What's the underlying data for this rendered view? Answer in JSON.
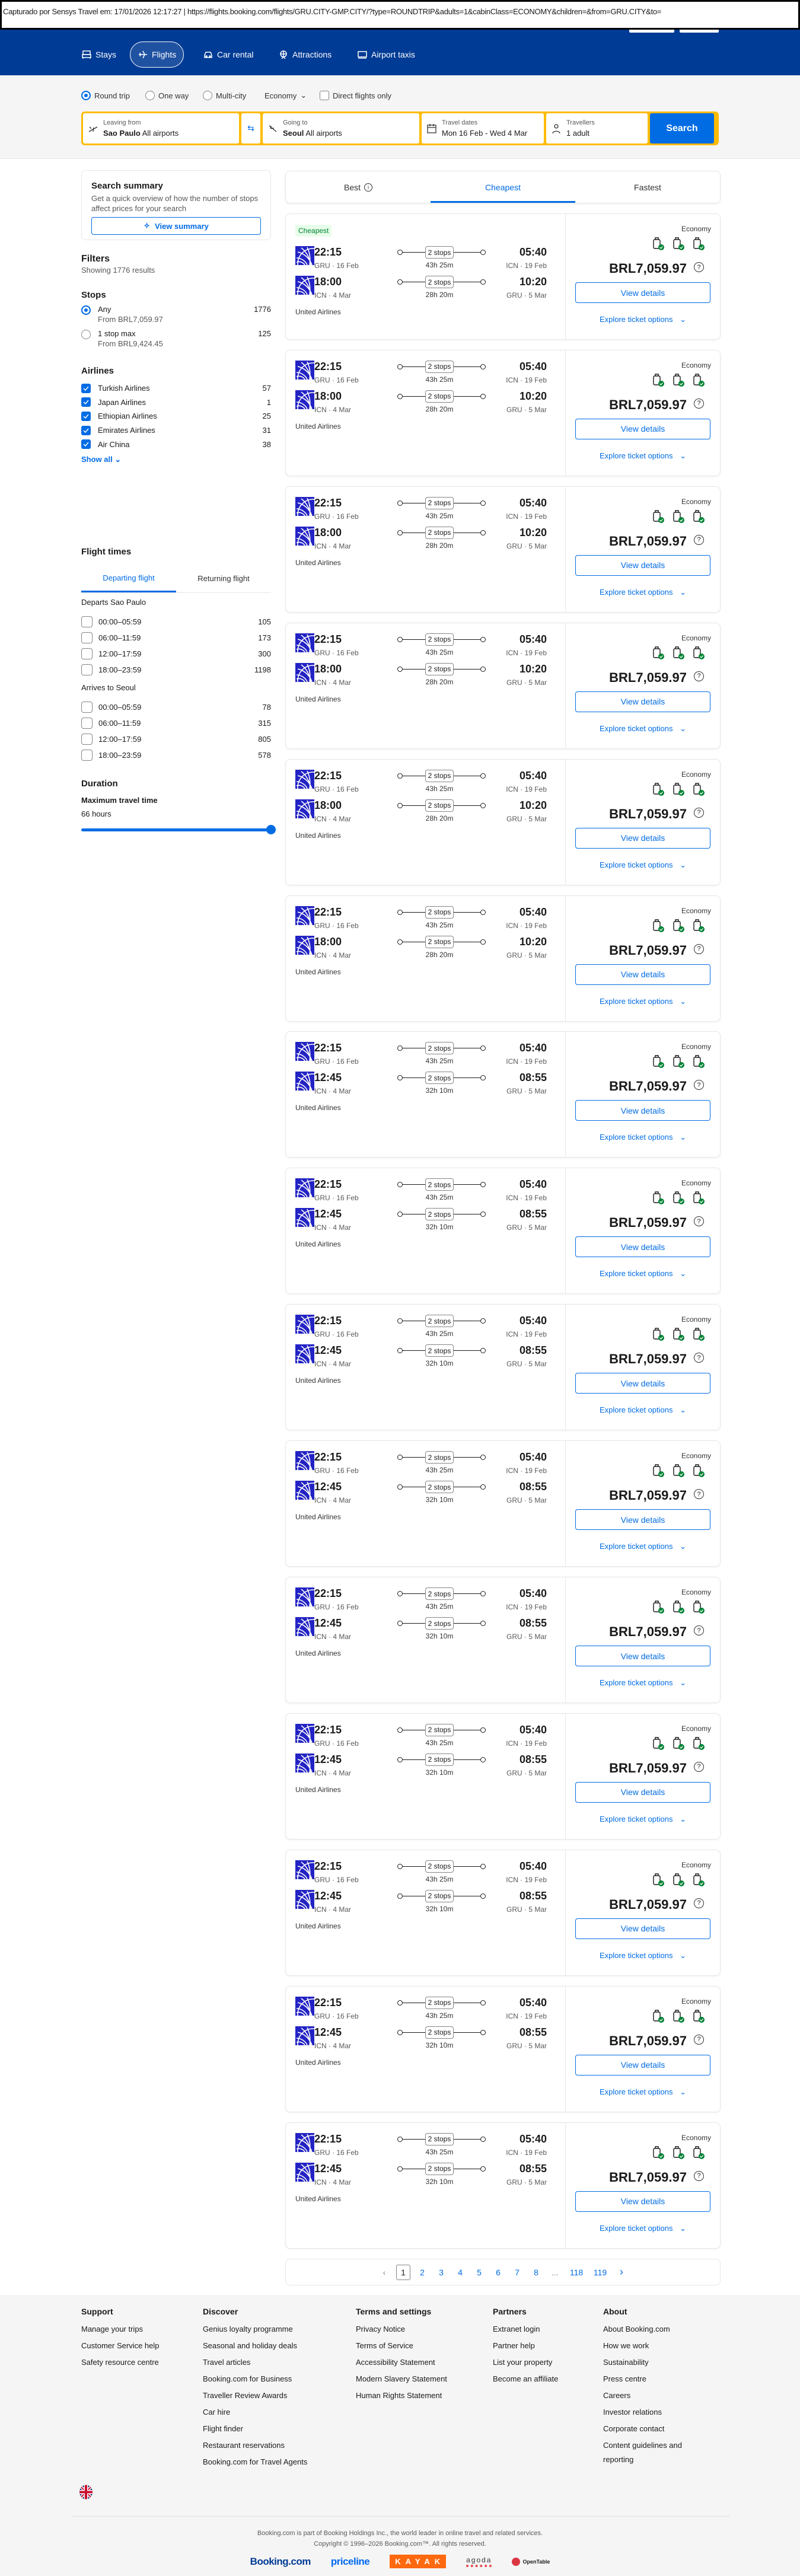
{
  "capture_bar": "Capturado por Sensys Travel em: 17/01/2026 12:17:27  |  https://flights.booking.com/flights/GRU.CITY-GMP.CITY/?type=ROUNDTRIP&adults=1&cabinClass=ECONOMY&children=&from=GRU.CITY&to=",
  "nav": {
    "items": [
      {
        "label": "Stays",
        "icon": "bed-icon"
      },
      {
        "label": "Flights",
        "icon": "plane-icon",
        "active": true
      },
      {
        "label": "Car rental",
        "icon": "car-icon"
      },
      {
        "label": "Attractions",
        "icon": "ferris-wheel-icon"
      },
      {
        "label": "Airport taxis",
        "icon": "taxi-icon"
      }
    ]
  },
  "search": {
    "trip_types": [
      "Round trip",
      "One way",
      "Multi-city"
    ],
    "trip_selected": "Round trip",
    "cabin": "Economy",
    "direct_only": "Direct flights only",
    "leaving": {
      "label": "Leaving from",
      "city": "Sao Paulo",
      "airports": "All airports"
    },
    "going": {
      "label": "Going to",
      "city": "Seoul",
      "airports": "All airports"
    },
    "dates": {
      "label": "Travel dates",
      "value": "Mon 16 Feb - Wed 4 Mar"
    },
    "travellers": {
      "label": "Travellers",
      "value": "1 adult"
    },
    "button": "Search"
  },
  "sidebar": {
    "summary": {
      "title": "Search summary",
      "text": "Get a quick overview of how the number of stops affect prices for your search",
      "button": "View summary"
    },
    "filters": {
      "title": "Filters",
      "showing": "Showing 1776 results"
    },
    "stops": {
      "title": "Stops",
      "options": [
        {
          "label": "Any",
          "sub": "From BRL7,059.97",
          "count": "1776",
          "selected": true
        },
        {
          "label": "1 stop max",
          "sub": "From BRL9,424.45",
          "count": "125",
          "selected": false
        }
      ]
    },
    "airlines": {
      "title": "Airlines",
      "items": [
        {
          "name": "Turkish Airlines",
          "count": "57",
          "checked": true
        },
        {
          "name": "Japan Airlines",
          "count": "1",
          "checked": true
        },
        {
          "name": "Ethiopian Airlines",
          "count": "25",
          "checked": true
        },
        {
          "name": "Emirates Airlines",
          "count": "31",
          "checked": true
        },
        {
          "name": "Air China",
          "count": "38",
          "checked": true
        }
      ],
      "show_all": "Show all"
    },
    "flight_times": {
      "title": "Flight times",
      "tabs": [
        "Departing flight",
        "Returning flight"
      ],
      "active_tab": "Departing flight",
      "departs": {
        "title": "Departs Sao Paulo",
        "rows": [
          {
            "range": "00:00–05:59",
            "count": "105"
          },
          {
            "range": "06:00–11:59",
            "count": "173"
          },
          {
            "range": "12:00–17:59",
            "count": "300"
          },
          {
            "range": "18:00–23:59",
            "count": "1198"
          }
        ]
      },
      "arrives": {
        "title": "Arrives to Seoul",
        "rows": [
          {
            "range": "00:00–05:59",
            "count": "78"
          },
          {
            "range": "06:00–11:59",
            "count": "315"
          },
          {
            "range": "12:00–17:59",
            "count": "805"
          },
          {
            "range": "18:00–23:59",
            "count": "578"
          }
        ]
      }
    },
    "duration": {
      "title": "Duration",
      "label": "Maximum travel time",
      "value": "66 hours",
      "slider_fraction": 1.0
    }
  },
  "results": {
    "tabs": [
      "Best",
      "Cheapest",
      "Fastest"
    ],
    "active_tab": "Cheapest",
    "flights": [
      {
        "badge": "Cheapest",
        "out": {
          "dep": "22:15",
          "dep_place": "GRU · 16 Feb",
          "stops": "2 stops",
          "duration": "43h 25m",
          "arr": "05:40",
          "arr_place": "ICN · 19 Feb"
        },
        "ret": {
          "dep": "18:00",
          "dep_place": "ICN · 4 Mar",
          "stops": "2 stops",
          "duration": "28h 20m",
          "arr": "10:20",
          "arr_place": "GRU · 5 Mar"
        },
        "airline": "United Airlines",
        "cabin": "Economy",
        "price": "BRL7,059.97",
        "view": "View details",
        "explore": "Explore ticket options"
      },
      {
        "out": {
          "dep": "22:15",
          "dep_place": "GRU · 16 Feb",
          "stops": "2 stops",
          "duration": "43h 25m",
          "arr": "05:40",
          "arr_place": "ICN · 19 Feb"
        },
        "ret": {
          "dep": "18:00",
          "dep_place": "ICN · 4 Mar",
          "stops": "2 stops",
          "duration": "28h 20m",
          "arr": "10:20",
          "arr_place": "GRU · 5 Mar"
        },
        "airline": "United Airlines",
        "cabin": "Economy",
        "price": "BRL7,059.97",
        "view": "View details",
        "explore": "Explore ticket options"
      },
      {
        "out": {
          "dep": "22:15",
          "dep_place": "GRU · 16 Feb",
          "stops": "2 stops",
          "duration": "43h 25m",
          "arr": "05:40",
          "arr_place": "ICN · 19 Feb"
        },
        "ret": {
          "dep": "18:00",
          "dep_place": "ICN · 4 Mar",
          "stops": "2 stops",
          "duration": "28h 20m",
          "arr": "10:20",
          "arr_place": "GRU · 5 Mar"
        },
        "airline": "United Airlines",
        "cabin": "Economy",
        "price": "BRL7,059.97",
        "view": "View details",
        "explore": "Explore ticket options"
      },
      {
        "out": {
          "dep": "22:15",
          "dep_place": "GRU · 16 Feb",
          "stops": "2 stops",
          "duration": "43h 25m",
          "arr": "05:40",
          "arr_place": "ICN · 19 Feb"
        },
        "ret": {
          "dep": "18:00",
          "dep_place": "ICN · 4 Mar",
          "stops": "2 stops",
          "duration": "28h 20m",
          "arr": "10:20",
          "arr_place": "GRU · 5 Mar"
        },
        "airline": "United Airlines",
        "cabin": "Economy",
        "price": "BRL7,059.97",
        "view": "View details",
        "explore": "Explore ticket options"
      },
      {
        "out": {
          "dep": "22:15",
          "dep_place": "GRU · 16 Feb",
          "stops": "2 stops",
          "duration": "43h 25m",
          "arr": "05:40",
          "arr_place": "ICN · 19 Feb"
        },
        "ret": {
          "dep": "18:00",
          "dep_place": "ICN · 4 Mar",
          "stops": "2 stops",
          "duration": "28h 20m",
          "arr": "10:20",
          "arr_place": "GRU · 5 Mar"
        },
        "airline": "United Airlines",
        "cabin": "Economy",
        "price": "BRL7,059.97",
        "view": "View details",
        "explore": "Explore ticket options"
      },
      {
        "out": {
          "dep": "22:15",
          "dep_place": "GRU · 16 Feb",
          "stops": "2 stops",
          "duration": "43h 25m",
          "arr": "05:40",
          "arr_place": "ICN · 19 Feb"
        },
        "ret": {
          "dep": "18:00",
          "dep_place": "ICN · 4 Mar",
          "stops": "2 stops",
          "duration": "28h 20m",
          "arr": "10:20",
          "arr_place": "GRU · 5 Mar"
        },
        "airline": "United Airlines",
        "cabin": "Economy",
        "price": "BRL7,059.97",
        "view": "View details",
        "explore": "Explore ticket options"
      },
      {
        "out": {
          "dep": "22:15",
          "dep_place": "GRU · 16 Feb",
          "stops": "2 stops",
          "duration": "43h 25m",
          "arr": "05:40",
          "arr_place": "ICN · 19 Feb"
        },
        "ret": {
          "dep": "12:45",
          "dep_place": "ICN · 4 Mar",
          "stops": "2 stops",
          "duration": "32h 10m",
          "arr": "08:55",
          "arr_place": "GRU · 5 Mar"
        },
        "airline": "United Airlines",
        "cabin": "Economy",
        "price": "BRL7,059.97",
        "view": "View details",
        "explore": "Explore ticket options"
      },
      {
        "out": {
          "dep": "22:15",
          "dep_place": "GRU · 16 Feb",
          "stops": "2 stops",
          "duration": "43h 25m",
          "arr": "05:40",
          "arr_place": "ICN · 19 Feb"
        },
        "ret": {
          "dep": "12:45",
          "dep_place": "ICN · 4 Mar",
          "stops": "2 stops",
          "duration": "32h 10m",
          "arr": "08:55",
          "arr_place": "GRU · 5 Mar"
        },
        "airline": "United Airlines",
        "cabin": "Economy",
        "price": "BRL7,059.97",
        "view": "View details",
        "explore": "Explore ticket options"
      },
      {
        "out": {
          "dep": "22:15",
          "dep_place": "GRU · 16 Feb",
          "stops": "2 stops",
          "duration": "43h 25m",
          "arr": "05:40",
          "arr_place": "ICN · 19 Feb"
        },
        "ret": {
          "dep": "12:45",
          "dep_place": "ICN · 4 Mar",
          "stops": "2 stops",
          "duration": "32h 10m",
          "arr": "08:55",
          "arr_place": "GRU · 5 Mar"
        },
        "airline": "United Airlines",
        "cabin": "Economy",
        "price": "BRL7,059.97",
        "view": "View details",
        "explore": "Explore ticket options"
      },
      {
        "out": {
          "dep": "22:15",
          "dep_place": "GRU · 16 Feb",
          "stops": "2 stops",
          "duration": "43h 25m",
          "arr": "05:40",
          "arr_place": "ICN · 19 Feb"
        },
        "ret": {
          "dep": "12:45",
          "dep_place": "ICN · 4 Mar",
          "stops": "2 stops",
          "duration": "32h 10m",
          "arr": "08:55",
          "arr_place": "GRU · 5 Mar"
        },
        "airline": "United Airlines",
        "cabin": "Economy",
        "price": "BRL7,059.97",
        "view": "View details",
        "explore": "Explore ticket options"
      },
      {
        "out": {
          "dep": "22:15",
          "dep_place": "GRU · 16 Feb",
          "stops": "2 stops",
          "duration": "43h 25m",
          "arr": "05:40",
          "arr_place": "ICN · 19 Feb"
        },
        "ret": {
          "dep": "12:45",
          "dep_place": "ICN · 4 Mar",
          "stops": "2 stops",
          "duration": "32h 10m",
          "arr": "08:55",
          "arr_place": "GRU · 5 Mar"
        },
        "airline": "United Airlines",
        "cabin": "Economy",
        "price": "BRL7,059.97",
        "view": "View details",
        "explore": "Explore ticket options"
      },
      {
        "out": {
          "dep": "22:15",
          "dep_place": "GRU · 16 Feb",
          "stops": "2 stops",
          "duration": "43h 25m",
          "arr": "05:40",
          "arr_place": "ICN · 19 Feb"
        },
        "ret": {
          "dep": "12:45",
          "dep_place": "ICN · 4 Mar",
          "stops": "2 stops",
          "duration": "32h 10m",
          "arr": "08:55",
          "arr_place": "GRU · 5 Mar"
        },
        "airline": "United Airlines",
        "cabin": "Economy",
        "price": "BRL7,059.97",
        "view": "View details",
        "explore": "Explore ticket options"
      },
      {
        "out": {
          "dep": "22:15",
          "dep_place": "GRU · 16 Feb",
          "stops": "2 stops",
          "duration": "43h 25m",
          "arr": "05:40",
          "arr_place": "ICN · 19 Feb"
        },
        "ret": {
          "dep": "12:45",
          "dep_place": "ICN · 4 Mar",
          "stops": "2 stops",
          "duration": "32h 10m",
          "arr": "08:55",
          "arr_place": "GRU · 5 Mar"
        },
        "airline": "United Airlines",
        "cabin": "Economy",
        "price": "BRL7,059.97",
        "view": "View details",
        "explore": "Explore ticket options"
      },
      {
        "out": {
          "dep": "22:15",
          "dep_place": "GRU · 16 Feb",
          "stops": "2 stops",
          "duration": "43h 25m",
          "arr": "05:40",
          "arr_place": "ICN · 19 Feb"
        },
        "ret": {
          "dep": "12:45",
          "dep_place": "ICN · 4 Mar",
          "stops": "2 stops",
          "duration": "32h 10m",
          "arr": "08:55",
          "arr_place": "GRU · 5 Mar"
        },
        "airline": "United Airlines",
        "cabin": "Economy",
        "price": "BRL7,059.97",
        "view": "View details",
        "explore": "Explore ticket options"
      },
      {
        "out": {
          "dep": "22:15",
          "dep_place": "GRU · 16 Feb",
          "stops": "2 stops",
          "duration": "43h 25m",
          "arr": "05:40",
          "arr_place": "ICN · 19 Feb"
        },
        "ret": {
          "dep": "12:45",
          "dep_place": "ICN · 4 Mar",
          "stops": "2 stops",
          "duration": "32h 10m",
          "arr": "08:55",
          "arr_place": "GRU · 5 Mar"
        },
        "airline": "United Airlines",
        "cabin": "Economy",
        "price": "BRL7,059.97",
        "view": "View details",
        "explore": "Explore ticket options"
      }
    ]
  },
  "pagination": {
    "pages": [
      "1",
      "2",
      "3",
      "4",
      "5",
      "6",
      "7",
      "8",
      "...",
      "118",
      "119"
    ],
    "current": "1"
  },
  "footer": {
    "columns": [
      {
        "title": "Support",
        "links": [
          "Manage your trips",
          "Customer Service help",
          "Safety resource centre"
        ]
      },
      {
        "title": "Discover",
        "links": [
          "Genius loyalty programme",
          "Seasonal and holiday deals",
          "Travel articles",
          "Booking.com for Business",
          "Traveller Review Awards",
          "Car hire",
          "Flight finder",
          "Restaurant reservations",
          "Booking.com for Travel Agents"
        ]
      },
      {
        "title": "Terms and settings",
        "links": [
          "Privacy Notice",
          "Terms of Service",
          "Accessibility Statement",
          "Modern Slavery Statement",
          "Human Rights Statement"
        ]
      },
      {
        "title": "Partners",
        "links": [
          "Extranet login",
          "Partner help",
          "List your property",
          "Become an affiliate"
        ]
      },
      {
        "title": "About",
        "links": [
          "About Booking.com",
          "How we work",
          "Sustainability",
          "Press centre",
          "Careers",
          "Investor relations",
          "Corporate contact",
          "Content guidelines and reporting"
        ]
      }
    ],
    "legal": [
      "Booking.com is part of Booking Holdings Inc., the world leader in online travel and related services.",
      "Copyright © 1996–2026 Booking.com™. All rights reserved."
    ],
    "brands": [
      "Booking.com",
      "priceline",
      "KAYAK",
      "agoda",
      "OpenTable"
    ],
    "language_icon": "uk-flag-icon"
  },
  "colors": {
    "brand_blue": "#003b95",
    "primary": "#006ce4",
    "search_border": "#febb02",
    "badge_green": "#008234"
  }
}
